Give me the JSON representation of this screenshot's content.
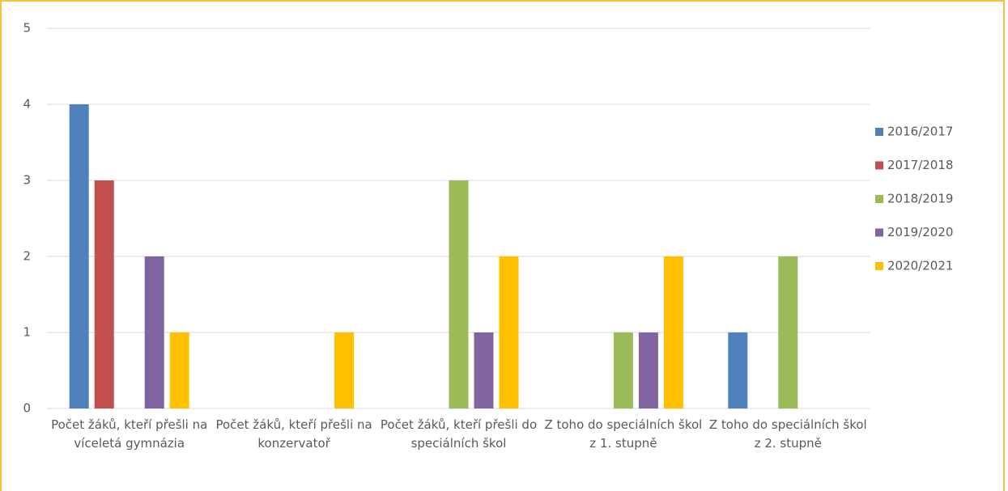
{
  "chart_data": {
    "type": "bar",
    "categories": [
      "Počet žáků, kteří přešli na víceletá gymnázia",
      "Počet žáků, kteří přešli na konzervatoř",
      "Počet žáků, kteří přešli do speciálních škol",
      "Z toho do speciálních škol z 1. stupně",
      "Z toho do speciálních škol z 2. stupně"
    ],
    "series": [
      {
        "name": "2016/2017",
        "color": "#4f81bd",
        "values": [
          4,
          0,
          0,
          0,
          1
        ]
      },
      {
        "name": "2017/2018",
        "color": "#c0504d",
        "values": [
          3,
          0,
          0,
          0,
          0
        ]
      },
      {
        "name": "2018/2019",
        "color": "#9bbb59",
        "values": [
          0,
          0,
          3,
          1,
          2
        ]
      },
      {
        "name": "2019/2020",
        "color": "#8064a2",
        "values": [
          2,
          0,
          1,
          1,
          0
        ]
      },
      {
        "name": "2020/2021",
        "color": "#ffc000",
        "values": [
          1,
          1,
          2,
          2,
          0
        ]
      }
    ],
    "ylim": [
      0,
      5
    ],
    "yticks": [
      0,
      1,
      2,
      3,
      4,
      5
    ],
    "grid": true,
    "legend": "right"
  }
}
